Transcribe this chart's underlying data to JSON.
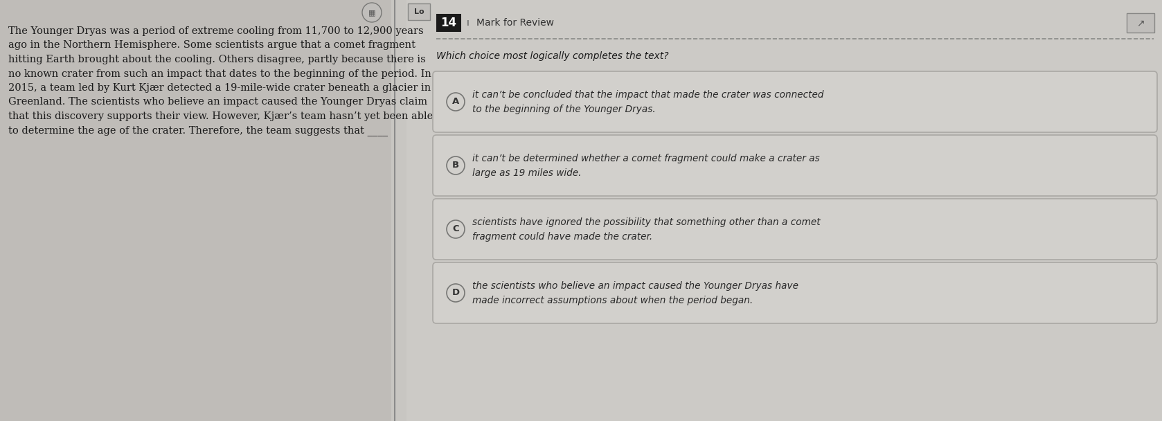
{
  "bg_color": "#c8c6c2",
  "left_panel_color": "#bfbcb8",
  "right_panel_color": "#cccac6",
  "divider_color": "#8a8a8a",
  "passage_text_lines": [
    "The Younger Dryas was a period of extreme cooling from 11,700 to 12,900 years",
    "ago in the Northern Hemisphere. Some scientists argue that a comet fragment",
    "hitting Earth brought about the cooling. Others disagree, partly because there is",
    "no known crater from such an impact that dates to the beginning of the period. In",
    "2015, a team led by Kurt Kjær detected a 19-mile-wide crater beneath a glacier in",
    "Greenland. The scientists who believe an impact caused the Younger Dryas claim",
    "that this discovery supports their view. However, Kjær’s team hasn’t yet been able",
    "to determine the age of the crater. Therefore, the team suggests that ____"
  ],
  "question_number": "14",
  "bookmark_label": "Mark for Review",
  "question_text": "Which choice most logically completes the text?",
  "choices": [
    {
      "label": "A",
      "line1": "it can’t be concluded that the impact that made the crater was connected",
      "line2": "to the beginning of the Younger Dryas."
    },
    {
      "label": "B",
      "line1": "it can’t be determined whether a comet fragment could make a crater as",
      "line2": "large as 19 miles wide."
    },
    {
      "label": "C",
      "line1": "scientists have ignored the possibility that something other than a comet",
      "line2": "fragment could have made the crater."
    },
    {
      "label": "D",
      "line1": "the scientists who believe an impact caused the Younger Dryas have",
      "line2": "made incorrect assumptions about when the period began."
    }
  ],
  "text_color": "#1a1a1a",
  "italic_text_color": "#2a2a2a",
  "passage_font_size": 10.5,
  "question_font_size": 10.0,
  "choice_font_size": 9.8,
  "choice_box_facecolor": "#d2d0cc",
  "choice_box_edgecolor": "#aaa8a4",
  "circle_facecolor": "#d2d0cc",
  "circle_edgecolor": "#777775",
  "num_box_color": "#1a1a1a",
  "num_box_text_color": "#ffffff",
  "header_line_color": "#888886",
  "right_icon_color": "#c0bebb",
  "right_icon_edge": "#888886",
  "left_icon_color": "#c0bebb",
  "lo_box_color": "#c0bebb",
  "lo_box_edge": "#888886"
}
